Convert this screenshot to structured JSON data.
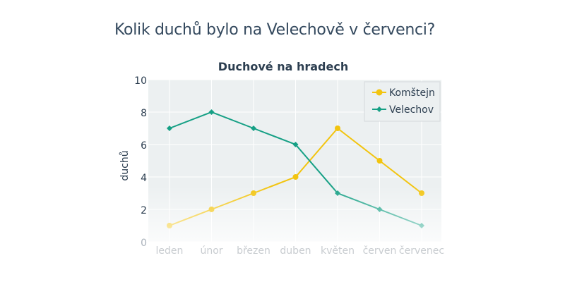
{
  "page_title": "Kolik duchů bylo na Velechově v červenci?",
  "chart_data": {
    "type": "line",
    "title": "Duchové na hradech",
    "xlabel": "",
    "ylabel": "duchů",
    "categories": [
      "leden",
      "únor",
      "březen",
      "duben",
      "květen",
      "červen",
      "červenec"
    ],
    "ylim": [
      0,
      10
    ],
    "yticks": [
      0,
      2,
      4,
      6,
      8,
      10
    ],
    "grid": true,
    "legend_position": "top-right",
    "series": [
      {
        "name": "Komštejn",
        "values": [
          1,
          2,
          3,
          4,
          7,
          5,
          3
        ],
        "color": "#f2c40f",
        "marker": "circle"
      },
      {
        "name": "Velechov",
        "values": [
          7,
          8,
          7,
          6,
          3,
          2,
          1
        ],
        "color": "#16a085",
        "marker": "diamond"
      }
    ],
    "colors": {
      "plot_bg": "#ecf0f1",
      "text": "#2c3e50",
      "xtick": "#c8ccd0"
    }
  }
}
